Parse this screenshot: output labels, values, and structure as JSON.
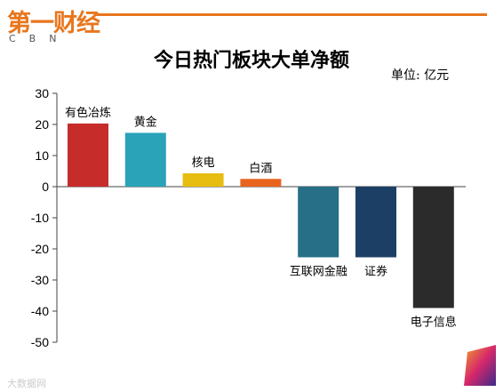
{
  "logo": {
    "text_cn": "第一财经",
    "text_en": "CBN"
  },
  "unit_label": "单位: 亿元",
  "watermark": "大数据网",
  "colors": {
    "accent": "#e8761e"
  },
  "chart_data": {
    "type": "bar",
    "title": "今日热门板块大单净额",
    "xlabel": "",
    "ylabel": "",
    "ylim": [
      -50,
      30
    ],
    "yticks": [
      30,
      20,
      10,
      0,
      -10,
      -20,
      -30,
      -40,
      -50
    ],
    "grid": false,
    "categories": [
      "有色冶炼",
      "黄金",
      "核电",
      "白酒",
      "互联网金融",
      "证券",
      "电子信息"
    ],
    "values": [
      20.3,
      17.3,
      4.3,
      2.5,
      -22.7,
      -22.7,
      -39.0
    ],
    "colors": [
      "#c62d2a",
      "#2aa3b8",
      "#e6bd10",
      "#e8641e",
      "#266f87",
      "#1c3f66",
      "#2b2b2b"
    ]
  }
}
